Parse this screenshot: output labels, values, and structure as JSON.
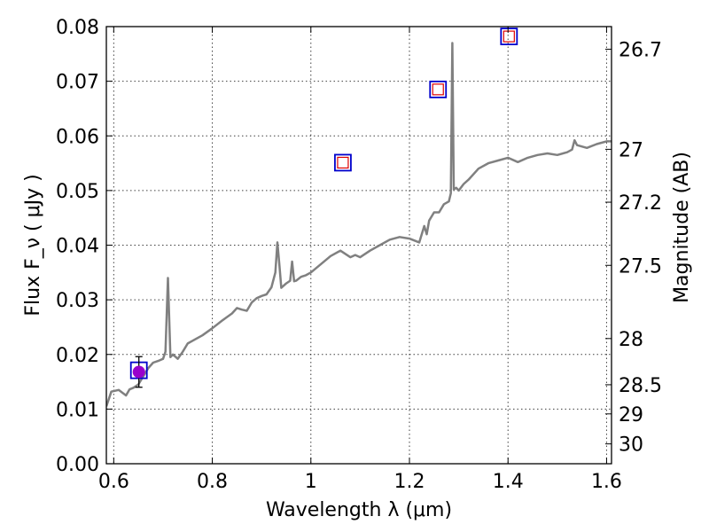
{
  "chart_data": {
    "type": "line",
    "title": "",
    "xlabel": "Wavelength  λ (μm)",
    "ylabel": "Flux  F_ν  ( μJy )",
    "y2label": "Magnitude (AB)",
    "xlim": [
      0.585,
      1.61
    ],
    "ylim": [
      0.0,
      0.08
    ],
    "grid": true,
    "x_ticks": [
      0.6,
      0.8,
      1.0,
      1.2,
      1.4,
      1.6
    ],
    "x_tick_labels": [
      "0.6",
      "0.8",
      "1",
      "1.2",
      "1.4",
      "1.6"
    ],
    "y_ticks": [
      0.0,
      0.01,
      0.02,
      0.03,
      0.04,
      0.05,
      0.06,
      0.07,
      0.08
    ],
    "y_tick_labels": [
      "0.00",
      "0.01",
      "0.02",
      "0.03",
      "0.04",
      "0.05",
      "0.06",
      "0.07",
      "0.08"
    ],
    "y2_ticks": [
      26.7,
      27.0,
      27.2,
      27.5,
      28.0,
      28.5,
      29.0,
      30.0
    ],
    "y2_tick_labels": [
      "26.7",
      "27",
      "27.2",
      "27.5",
      "28",
      "28.5",
      "29",
      "30"
    ],
    "series": [
      {
        "type": "line",
        "color": "#808080",
        "x": [
          0.585,
          0.595,
          0.61,
          0.625,
          0.632,
          0.64,
          0.65,
          0.66,
          0.67,
          0.68,
          0.69,
          0.7,
          0.705,
          0.71,
          0.715,
          0.72,
          0.73,
          0.74,
          0.75,
          0.76,
          0.78,
          0.8,
          0.82,
          0.84,
          0.85,
          0.86,
          0.87,
          0.88,
          0.89,
          0.9,
          0.91,
          0.92,
          0.928,
          0.932,
          0.936,
          0.94,
          0.95,
          0.958,
          0.962,
          0.966,
          0.97,
          0.98,
          0.99,
          1.0,
          1.02,
          1.04,
          1.06,
          1.08,
          1.09,
          1.1,
          1.12,
          1.14,
          1.16,
          1.18,
          1.2,
          1.22,
          1.23,
          1.235,
          1.24,
          1.25,
          1.26,
          1.27,
          1.28,
          1.284,
          1.287,
          1.29,
          1.295,
          1.3,
          1.31,
          1.32,
          1.34,
          1.36,
          1.38,
          1.4,
          1.42,
          1.44,
          1.46,
          1.48,
          1.5,
          1.52,
          1.53,
          1.535,
          1.54,
          1.56,
          1.58,
          1.6,
          1.61
        ],
        "y": [
          0.0105,
          0.0132,
          0.0135,
          0.0125,
          0.0136,
          0.0139,
          0.0145,
          0.016,
          0.0175,
          0.0185,
          0.0188,
          0.0192,
          0.0205,
          0.034,
          0.0195,
          0.02,
          0.0192,
          0.0205,
          0.022,
          0.0225,
          0.0235,
          0.0248,
          0.0262,
          0.0275,
          0.0285,
          0.0282,
          0.028,
          0.0295,
          0.0303,
          0.0307,
          0.031,
          0.0323,
          0.035,
          0.0405,
          0.0365,
          0.0322,
          0.033,
          0.0335,
          0.037,
          0.0334,
          0.0335,
          0.0342,
          0.0345,
          0.035,
          0.0365,
          0.038,
          0.039,
          0.0378,
          0.0382,
          0.0378,
          0.039,
          0.04,
          0.041,
          0.0415,
          0.0412,
          0.0405,
          0.0435,
          0.042,
          0.0445,
          0.046,
          0.046,
          0.0475,
          0.048,
          0.0495,
          0.077,
          0.0502,
          0.0505,
          0.05,
          0.0512,
          0.052,
          0.054,
          0.055,
          0.0555,
          0.056,
          0.0552,
          0.056,
          0.0565,
          0.0568,
          0.0565,
          0.057,
          0.0575,
          0.0592,
          0.0583,
          0.0578,
          0.0585,
          0.059,
          0.059
        ]
      },
      {
        "type": "scatter",
        "marker": "open-square",
        "color": "#0000cc",
        "x": [
          0.651,
          1.065,
          1.258,
          1.402
        ],
        "y": [
          0.0171,
          0.0551,
          0.0685,
          0.0782
        ]
      },
      {
        "type": "scatter",
        "marker": "small-open-square",
        "color": "#dd0000",
        "x": [
          1.065,
          1.258,
          1.402
        ],
        "y": [
          0.0551,
          0.0685,
          0.0782
        ]
      },
      {
        "type": "scatter",
        "marker": "filled-circle",
        "color": "#9900cc",
        "x": [
          0.651
        ],
        "y": [
          0.0168
        ],
        "yerr": [
          0.0028
        ]
      }
    ]
  }
}
